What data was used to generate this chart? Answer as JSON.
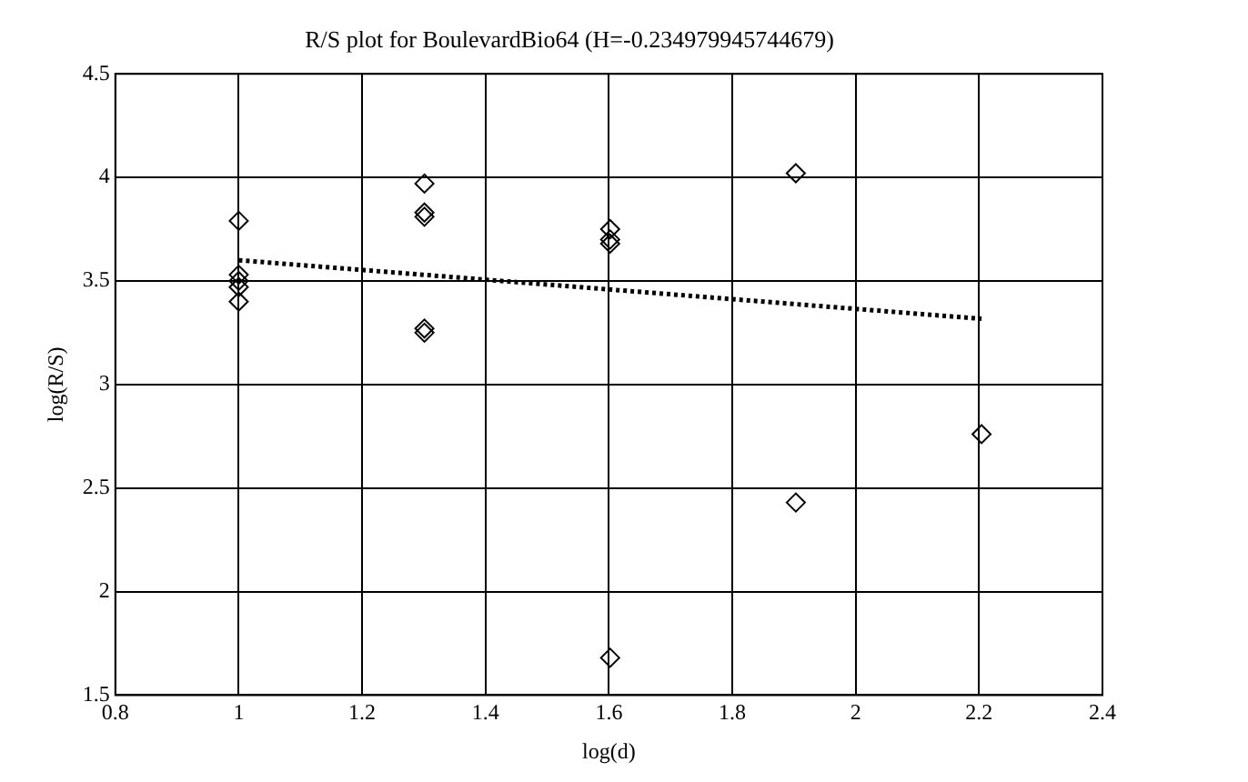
{
  "chart_data": {
    "type": "scatter",
    "title": "R/S plot for BoulevardBio64 (H=-0.234979945744679)",
    "xlabel": "log(d)",
    "ylabel": "log(R/S)",
    "xlim": [
      0.8,
      2.4
    ],
    "xticks": [
      0.8,
      1,
      1.2,
      1.4,
      1.6,
      1.8,
      2,
      2.2,
      2.4
    ],
    "ylim": [
      1.5,
      4.5
    ],
    "yticks": [
      1.5,
      2,
      2.5,
      3,
      3.5,
      4,
      4.5
    ],
    "grid": true,
    "legend": false,
    "marker": "diamond",
    "series": [
      {
        "color": "#000000",
        "x": [
          1,
          1,
          1,
          1,
          1,
          1.301,
          1.301,
          1.301,
          1.301,
          1.301,
          1.602,
          1.602,
          1.602,
          1.602,
          1.903,
          1.903,
          2.204
        ],
        "values": [
          3.79,
          3.53,
          3.5,
          3.47,
          3.4,
          3.97,
          3.83,
          3.81,
          3.27,
          3.25,
          3.75,
          3.7,
          3.68,
          1.68,
          4.02,
          2.43,
          2.76
        ]
      },
      {
        "type": "line",
        "color": "#000000",
        "marker": "none",
        "line_style": "dotted",
        "x": [
          1,
          2.204
        ],
        "values": [
          3.6,
          3.317
        ]
      }
    ]
  }
}
